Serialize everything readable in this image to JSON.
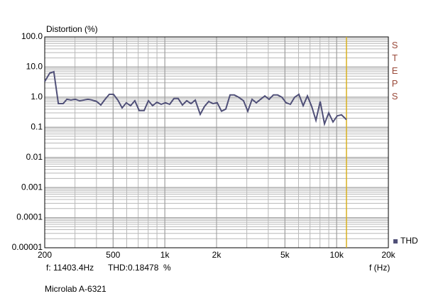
{
  "chart_data": {
    "type": "line",
    "title": "Distortion (%)",
    "xlabel": "f (Hz)",
    "subtitle": "Microlab A-6321",
    "side_label": "STEPS",
    "annotations": [
      "f: 11403.4Hz",
      "THD:0.18478  %"
    ],
    "log_x": true,
    "log_y": true,
    "grid": true,
    "xlim": [
      200,
      20000
    ],
    "ylim": [
      1e-05,
      100
    ],
    "xticks": [
      200,
      500,
      {
        "value": 1000,
        "label": "1k"
      },
      {
        "value": 2000,
        "label": "2k"
      },
      {
        "value": 5000,
        "label": "5k"
      },
      {
        "value": 10000,
        "label": "10k"
      },
      {
        "value": 20000,
        "label": "20k"
      }
    ],
    "yticks": [
      {
        "value": 100,
        "label": "100.0"
      },
      {
        "value": 10,
        "label": "10.0"
      },
      {
        "value": 1,
        "label": "1.0"
      },
      0.1,
      0.01,
      0.001,
      0.0001,
      1e-05
    ],
    "cursor": {
      "x": 11403.4,
      "color": "#d8b020"
    },
    "legend": "bottom-right",
    "x": [
      200,
      214,
      226,
      240,
      256,
      269,
      284,
      301,
      319,
      337,
      357,
      378,
      401,
      424,
      449,
      475,
      503,
      533,
      564,
      597,
      632,
      669,
      709,
      758,
      802,
      849,
      899,
      952,
      1008,
      1067,
      1130,
      1196,
      1266,
      1341,
      1420,
      1503,
      1607,
      1701,
      1801,
      1907,
      2019,
      2137,
      2263,
      2396,
      2537,
      2686,
      2870,
      3039,
      3217,
      3406,
      3606,
      3818,
      4043,
      4280,
      4532,
      4798,
      5080,
      5379,
      5695,
      6030,
      6384,
      6759,
      7156,
      7577,
      8022,
      8494,
      8993,
      9522,
      10081,
      10674,
      11403
    ],
    "series": [
      {
        "name": "THD",
        "color": "#505078",
        "values": [
          3.3,
          6.3,
          7.0,
          0.61,
          0.61,
          0.85,
          0.8,
          0.85,
          0.76,
          0.8,
          0.85,
          0.8,
          0.72,
          0.55,
          0.85,
          1.24,
          1.24,
          0.8,
          0.44,
          0.65,
          0.52,
          0.76,
          0.36,
          0.36,
          0.76,
          0.52,
          0.68,
          0.58,
          0.65,
          0.58,
          0.9,
          0.9,
          0.55,
          0.76,
          0.61,
          0.8,
          0.27,
          0.49,
          0.72,
          0.61,
          0.65,
          0.34,
          0.4,
          1.18,
          1.18,
          1.0,
          0.76,
          0.34,
          0.85,
          0.65,
          0.85,
          1.1,
          0.85,
          1.18,
          1.18,
          1.0,
          0.65,
          0.58,
          1.0,
          1.24,
          0.52,
          1.1,
          0.49,
          0.17,
          0.72,
          0.13,
          0.3,
          0.15,
          0.24,
          0.26,
          0.18
        ]
      }
    ]
  }
}
